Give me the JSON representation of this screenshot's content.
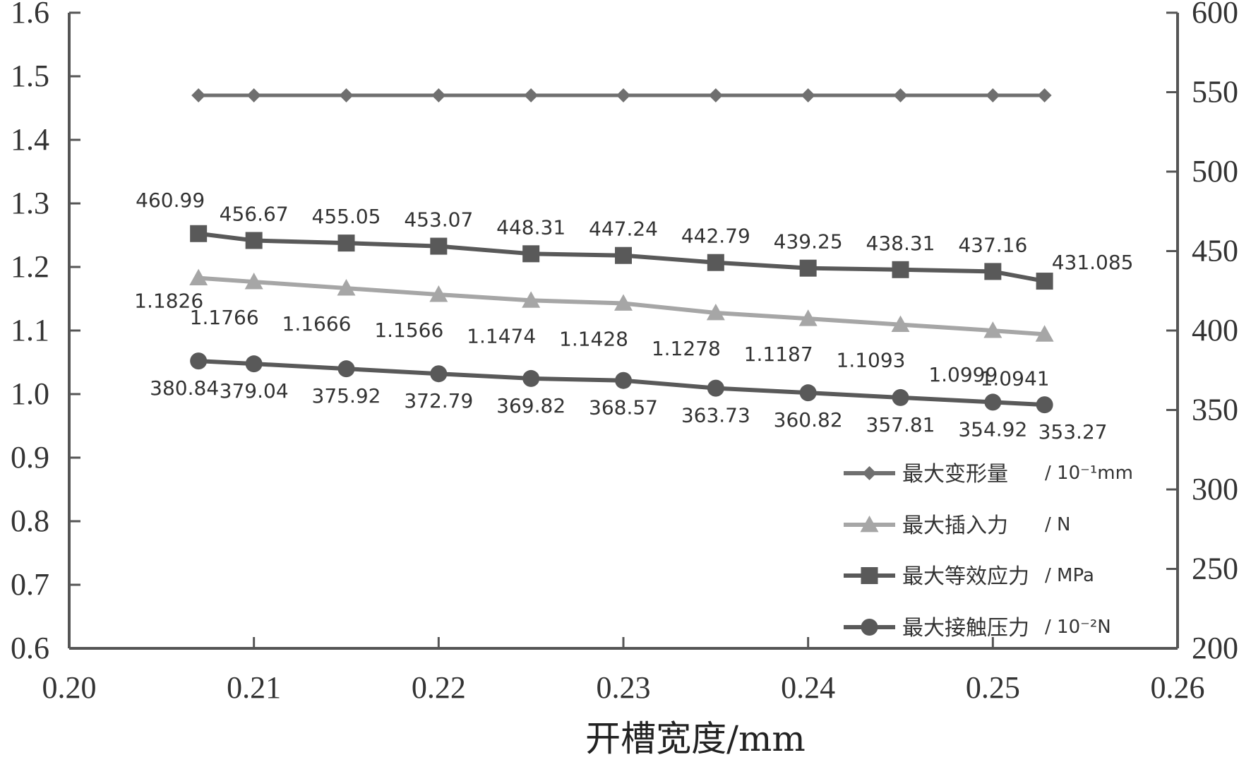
{
  "chart_data": {
    "type": "line",
    "xlabel": "开槽宽度/mm",
    "x": [
      0.207,
      0.21,
      0.215,
      0.22,
      0.225,
      0.23,
      0.235,
      0.24,
      0.245,
      0.25,
      0.2528
    ],
    "xlim": [
      0.2,
      0.26
    ],
    "xticks": [
      "0.20",
      "0.21",
      "0.22",
      "0.23",
      "0.24",
      "0.25",
      "0.26"
    ],
    "y_left_lim": [
      0.6,
      1.6
    ],
    "y_left_ticks": [
      "1.6",
      "1.5",
      "1.4",
      "1.3",
      "1.2",
      "1.1",
      "1.0",
      "0.9",
      "0.8",
      "0.7",
      "0.6"
    ],
    "y_right_lim": [
      200,
      600
    ],
    "y_right_ticks": [
      "600",
      "550",
      "500",
      "450",
      "400",
      "350",
      "300",
      "250",
      "200"
    ],
    "grid": false,
    "legend_position": "bottom-right",
    "series": [
      {
        "name": "最大变形量",
        "unit": "/ 10⁻¹mm",
        "axis": "left",
        "marker": "diamond",
        "color": "#6f6f6f",
        "values": [
          1.47,
          1.47,
          1.47,
          1.47,
          1.47,
          1.47,
          1.47,
          1.47,
          1.47,
          1.47,
          1.47
        ],
        "labels": []
      },
      {
        "name": "最大插入力",
        "unit": "/ N",
        "axis": "left",
        "marker": "triangle",
        "color": "#a6a6a6",
        "values": [
          1.1826,
          1.1766,
          1.1666,
          1.1566,
          1.1474,
          1.1428,
          1.1278,
          1.1187,
          1.1093,
          1.0999,
          1.0941
        ],
        "labels": [
          "1.1826",
          "1.1766",
          "1.1666",
          "1.1566",
          "1.1474",
          "1.1428",
          "1.1278",
          "1.1187",
          "1.1093",
          "1.0999",
          "1.0941"
        ]
      },
      {
        "name": "最大等效应力",
        "unit": "/ MPa",
        "axis": "right",
        "marker": "square",
        "color": "#595959",
        "values": [
          460.99,
          456.67,
          455.05,
          453.07,
          448.31,
          447.24,
          442.79,
          439.25,
          438.31,
          437.16,
          431.085
        ],
        "labels": [
          "460.99",
          "456.67",
          "455.05",
          "453.07",
          "448.31",
          "447.24",
          "442.79",
          "439.25",
          "438.31",
          "437.16",
          "431.085"
        ]
      },
      {
        "name": "最大接触压力",
        "unit": "/ 10⁻²N",
        "axis": "right",
        "marker": "circle",
        "color": "#595959",
        "values": [
          380.84,
          379.04,
          375.92,
          372.79,
          369.82,
          368.57,
          363.73,
          360.82,
          357.81,
          354.92,
          353.27
        ],
        "labels": [
          "380.84",
          "379.04",
          "375.92",
          "372.79",
          "369.82",
          "368.57",
          "363.73",
          "360.82",
          "357.81",
          "354.92",
          "353.27"
        ]
      }
    ]
  }
}
